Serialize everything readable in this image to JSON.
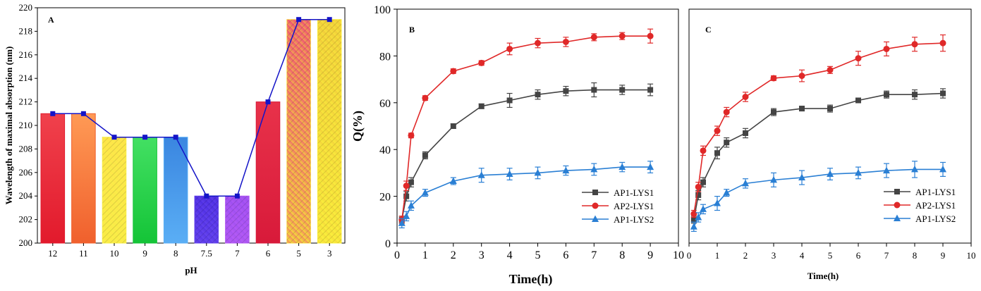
{
  "chart_data": [
    {
      "panel": "A",
      "type": "bar",
      "xlabel": "pH",
      "ylabel": "Wavelength of maximal absorption (nm)",
      "ylim": [
        200,
        220
      ],
      "yticks": [
        200,
        202,
        204,
        206,
        208,
        210,
        212,
        214,
        216,
        218,
        220
      ],
      "categories": [
        "12",
        "11",
        "10",
        "9",
        "8",
        "7.5",
        "7",
        "6",
        "5",
        "3"
      ],
      "values": [
        211,
        211,
        209,
        209,
        209,
        204,
        204,
        212,
        219,
        219
      ],
      "line_values": [
        211,
        211,
        209,
        209,
        209,
        204,
        204,
        212,
        219,
        219
      ],
      "bar_colors": [
        {
          "top": "#f0414c",
          "bottom": "#e21a2c"
        },
        {
          "top": "#ff9a55",
          "bottom": "#f0602d"
        },
        {
          "top": "#ffe24a",
          "bottom": "#f7f046"
        },
        {
          "top": "#43e063",
          "bottom": "#14c437"
        },
        {
          "top": "#3a86e0",
          "bottom": "#5aaef5"
        },
        {
          "top": "#4a2be0",
          "bottom": "#6a48f0"
        },
        {
          "top": "#9a4df0",
          "bottom": "#b85cf5"
        },
        {
          "top": "#e8324a",
          "bottom": "#d81a3a"
        },
        {
          "top": "#ee4a78",
          "bottom": "#f7e23a"
        },
        {
          "top": "#f0c93a",
          "bottom": "#fbf33c"
        }
      ],
      "line_color": "#1414c8",
      "grid": false
    },
    {
      "panel": "B",
      "type": "line",
      "xlabel": "Time(h)",
      "ylabel": "Q(%)",
      "xlim": [
        0,
        10
      ],
      "ylim": [
        0,
        100
      ],
      "xticks": [
        0,
        1,
        2,
        3,
        4,
        5,
        6,
        7,
        8,
        9,
        10
      ],
      "yticks": [
        0,
        20,
        40,
        60,
        80,
        100
      ],
      "legend_position": "bottom-right",
      "grid": false,
      "series": [
        {
          "name": "AP1-LYS1",
          "color": "#444444",
          "marker": "square",
          "x": [
            0.17,
            0.33,
            0.5,
            1,
            2,
            3,
            4,
            5,
            6,
            7,
            8,
            9
          ],
          "y": [
            10,
            20,
            26,
            37.5,
            50,
            58.5,
            61,
            63.5,
            65,
            65.5,
            65.5,
            65.5
          ],
          "err": [
            1.5,
            2,
            2,
            1.5,
            1,
            1,
            3,
            2,
            2,
            3,
            2,
            2.5
          ]
        },
        {
          "name": "AP2-LYS1",
          "color": "#e02828",
          "marker": "circle",
          "x": [
            0.17,
            0.33,
            0.5,
            1,
            2,
            3,
            4,
            5,
            6,
            7,
            8,
            9
          ],
          "y": [
            10,
            24.5,
            46,
            62,
            73.5,
            77,
            83,
            85.5,
            86,
            88,
            88.5,
            88.5
          ],
          "err": [
            1.5,
            2,
            1,
            1,
            1,
            1,
            2.5,
            2,
            2,
            1.5,
            1.5,
            3
          ]
        },
        {
          "name": "AP1-LYS2",
          "color": "#2a7fd4",
          "marker": "triangle",
          "x": [
            0.17,
            0.33,
            0.5,
            1,
            2,
            3,
            4,
            5,
            6,
            7,
            8,
            9
          ],
          "y": [
            8.5,
            11.5,
            16,
            21.5,
            26.5,
            29,
            29.5,
            30,
            31,
            31.5,
            32.5,
            32.5
          ],
          "err": [
            2,
            2,
            2,
            1.5,
            1.5,
            3,
            2.5,
            2.5,
            2,
            2.5,
            2,
            2.5
          ]
        }
      ]
    },
    {
      "panel": "C",
      "type": "line",
      "xlabel": "Time(h)",
      "ylabel": "",
      "xlim": [
        0,
        10
      ],
      "ylim": [
        0,
        100
      ],
      "xticks": [
        0,
        1,
        2,
        3,
        4,
        5,
        6,
        7,
        8,
        9,
        10
      ],
      "yticks": [],
      "legend_position": "bottom-right",
      "grid": false,
      "series": [
        {
          "name": "AP1-LYS1",
          "color": "#444444",
          "marker": "square",
          "x": [
            0.17,
            0.33,
            0.5,
            1,
            1.33,
            2,
            3,
            4,
            5,
            6,
            7,
            8,
            9
          ],
          "y": [
            10,
            20.5,
            26,
            38.5,
            43,
            47,
            56,
            57.5,
            57.5,
            61,
            63.5,
            63.5,
            64
          ],
          "err": [
            1.5,
            2,
            2,
            2.5,
            2,
            2,
            1.5,
            1,
            1.5,
            1,
            1.5,
            2,
            2
          ]
        },
        {
          "name": "AP2-LYS1",
          "color": "#e02828",
          "marker": "circle",
          "x": [
            0.17,
            0.33,
            0.5,
            1,
            1.33,
            2,
            3,
            4,
            5,
            6,
            7,
            8,
            9
          ],
          "y": [
            12.5,
            24,
            39.5,
            48,
            56,
            62.5,
            70.5,
            71.5,
            74,
            79,
            83,
            85,
            85.5
          ],
          "err": [
            1.5,
            2,
            2,
            2,
            2,
            2,
            1,
            2.5,
            1.5,
            3,
            3,
            3,
            3.5
          ]
        },
        {
          "name": "AP1-LYS2",
          "color": "#2a7fd4",
          "marker": "triangle",
          "x": [
            0.17,
            0.33,
            0.5,
            1,
            1.33,
            2,
            3,
            4,
            5,
            6,
            7,
            8,
            9
          ],
          "y": [
            7,
            11,
            14.5,
            17,
            21.5,
            25.5,
            27,
            28,
            29.5,
            30,
            31,
            31.5,
            31.5
          ],
          "err": [
            2,
            2,
            2,
            3,
            1.5,
            2,
            3,
            3,
            2.5,
            2.5,
            3,
            3.5,
            3
          ]
        }
      ]
    }
  ]
}
